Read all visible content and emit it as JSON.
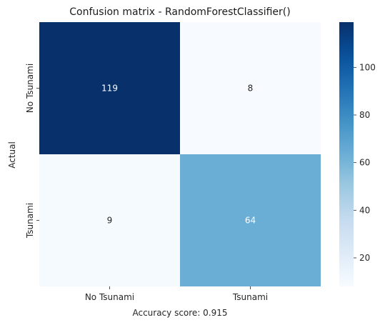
{
  "chart_data": {
    "type": "heatmap",
    "title": "Confusion matrix - RandomForestClassifier()",
    "xlabel": "Accuracy score: 0.915",
    "ylabel": "Actual",
    "x_categories": [
      "No Tsunami",
      "Tsunami"
    ],
    "y_categories": [
      "No Tsunami",
      "Tsunami"
    ],
    "values": [
      [
        119,
        8
      ],
      [
        9,
        64
      ]
    ],
    "colormap": "Blues",
    "colorbar": {
      "vmin": 8,
      "vmax": 119,
      "ticks": [
        20,
        40,
        60,
        80,
        100
      ]
    },
    "grid": false,
    "annotations": true
  },
  "colors": {
    "low": "#f7fbff",
    "high": "#08306b",
    "text_dark": "#262626",
    "text_light": "#ffffff"
  }
}
